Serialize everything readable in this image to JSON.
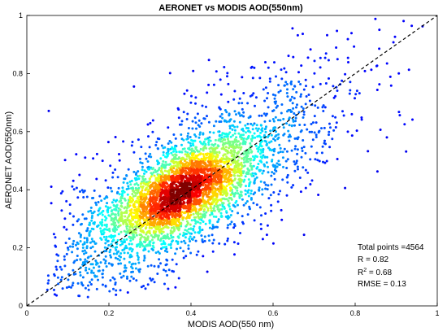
{
  "chart_data": {
    "type": "scatter",
    "title": "AERONET vs MODIS AOD(550nm)",
    "xlabel": "MODIS AOD(550 nm)",
    "ylabel": "AERONET AOD(550nm)",
    "xlim": [
      0,
      1
    ],
    "ylim": [
      0,
      1
    ],
    "x_ticks": [
      "0",
      "0.2",
      "0.4",
      "0.6",
      "0.8",
      "1"
    ],
    "y_ticks": [
      "0",
      "0.2",
      "0.4",
      "0.6",
      "0.8",
      "1"
    ],
    "grid": false,
    "colormap": "jet (point density)",
    "reference_line": {
      "style": "dashed",
      "color": "#000000",
      "x": [
        0,
        1
      ],
      "y": [
        0,
        1
      ]
    },
    "density_core": {
      "center_x": 0.38,
      "center_y": 0.36
    },
    "point_count": 4564,
    "stats": {
      "total": "Total points =4564",
      "r": "R = 0.82",
      "r2_prefix": "R",
      "r2_sup": "2",
      "r2_suffix": " = 0.68",
      "rmse": "RMSE = 0.13"
    },
    "colors": {
      "low_density": "#0000ff",
      "mid_density": "#00ffff",
      "high_density": "#ffff00",
      "peak_density": "#800000"
    }
  }
}
